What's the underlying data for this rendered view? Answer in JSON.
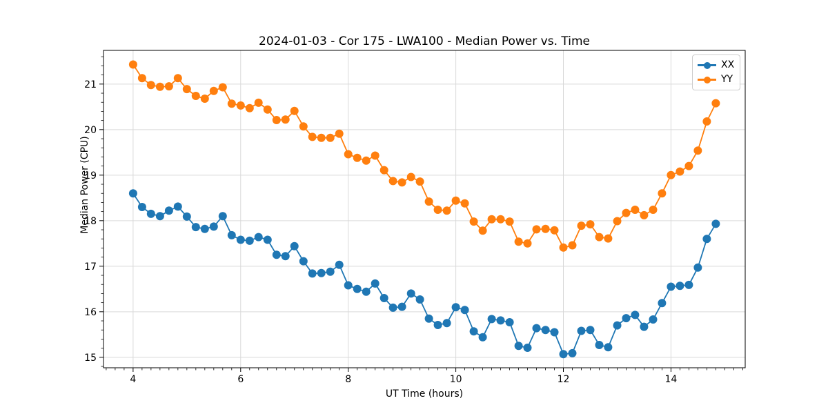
{
  "chart_data": {
    "type": "line",
    "title": "2024-01-03 - Cor 175 - LWA100 - Median Power vs. Time",
    "xlabel": "UT Time (hours)",
    "ylabel": "Median Power (CPU)",
    "xlim": [
      3.45,
      15.38
    ],
    "ylim": [
      14.77,
      21.74
    ],
    "x_ticks": [
      4,
      6,
      8,
      10,
      12,
      14
    ],
    "y_ticks": [
      15,
      16,
      17,
      18,
      19,
      20,
      21
    ],
    "x_minor_step": 0.16667,
    "y_minor_step": 0.2,
    "grid": true,
    "legend_position": "upper right",
    "marker": "o",
    "x": [
      4.0,
      4.167,
      4.333,
      4.5,
      4.667,
      4.833,
      5.0,
      5.167,
      5.333,
      5.5,
      5.667,
      5.833,
      6.0,
      6.167,
      6.333,
      6.5,
      6.667,
      6.833,
      7.0,
      7.167,
      7.333,
      7.5,
      7.667,
      7.833,
      8.0,
      8.167,
      8.333,
      8.5,
      8.667,
      8.833,
      9.0,
      9.167,
      9.333,
      9.5,
      9.667,
      9.833,
      10.0,
      10.167,
      10.333,
      10.5,
      10.667,
      10.833,
      11.0,
      11.167,
      11.333,
      11.5,
      11.667,
      11.833,
      12.0,
      12.167,
      12.333,
      12.5,
      12.667,
      12.833,
      13.0,
      13.167,
      13.333,
      13.5,
      13.667,
      13.833,
      14.0,
      14.167,
      14.333,
      14.5,
      14.667,
      14.833
    ],
    "series": [
      {
        "name": "XX",
        "color": "#1f77b4",
        "values": [
          18.6,
          18.3,
          18.15,
          18.1,
          18.22,
          18.31,
          18.09,
          17.86,
          17.82,
          17.87,
          18.1,
          17.68,
          17.58,
          17.56,
          17.64,
          17.58,
          17.25,
          17.22,
          17.44,
          17.11,
          16.84,
          16.85,
          16.88,
          17.03,
          16.58,
          16.5,
          16.44,
          16.62,
          16.3,
          16.09,
          16.11,
          16.4,
          16.27,
          15.85,
          15.71,
          15.75,
          16.1,
          16.04,
          15.57,
          15.44,
          15.84,
          15.81,
          15.77,
          15.25,
          15.21,
          15.64,
          15.6,
          15.55,
          15.07,
          15.09,
          15.58,
          15.6,
          15.27,
          15.22,
          15.7,
          15.86,
          15.93,
          15.67,
          15.83,
          16.19,
          16.55,
          16.57,
          16.59,
          16.97,
          17.6,
          17.93
        ]
      },
      {
        "name": "YY",
        "color": "#ff7f0e",
        "values": [
          21.43,
          21.13,
          20.98,
          20.94,
          20.95,
          21.13,
          20.89,
          20.74,
          20.68,
          20.85,
          20.93,
          20.57,
          20.53,
          20.47,
          20.59,
          20.44,
          20.21,
          20.22,
          20.41,
          20.07,
          19.84,
          19.82,
          19.82,
          19.91,
          19.46,
          19.38,
          19.32,
          19.43,
          19.11,
          18.87,
          18.84,
          18.96,
          18.86,
          18.42,
          18.24,
          18.22,
          18.44,
          18.38,
          17.98,
          17.78,
          18.03,
          18.03,
          17.98,
          17.54,
          17.5,
          17.81,
          17.82,
          17.79,
          17.41,
          17.46,
          17.89,
          17.92,
          17.64,
          17.61,
          17.99,
          18.17,
          18.24,
          18.12,
          18.24,
          18.6,
          19.0,
          19.08,
          19.2,
          19.54,
          20.18,
          20.58
        ]
      }
    ],
    "style": {
      "grid_color": "#d9d9d9",
      "spine_color": "#000000",
      "background": "#ffffff",
      "marker_radius": 6,
      "line_width": 1.8
    }
  }
}
